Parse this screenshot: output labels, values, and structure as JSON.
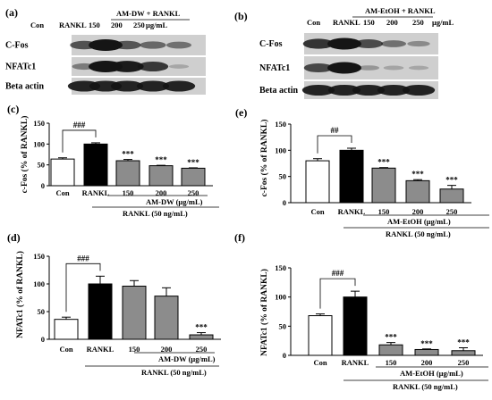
{
  "colors": {
    "con": "#ffffff",
    "rankl": "#000000",
    "treat": "#8c8c8c",
    "band_bg": "#cfcfcf",
    "band": "#151515"
  },
  "blots": [
    {
      "panel": "(a)",
      "group_label": "AM-DW + RANKL",
      "lanes": [
        "Con",
        "RANKL",
        "150",
        "200",
        "250"
      ],
      "unit": "μg/mL",
      "rows": [
        {
          "label": "C-Fos",
          "intensity": [
            0.62,
            1.0,
            0.6,
            0.48,
            0.42
          ]
        },
        {
          "label": "NFATc1",
          "intensity": [
            0.35,
            1.0,
            0.96,
            0.78,
            0.08
          ]
        },
        {
          "label": "Beta actin",
          "intensity": [
            0.9,
            0.9,
            0.9,
            0.9,
            0.9
          ]
        }
      ]
    },
    {
      "panel": "(b)",
      "group_label": "AM-EtOH + RANKL",
      "lanes": [
        "Con",
        "RANKL",
        "150",
        "200",
        "250"
      ],
      "unit": "μg/mL",
      "rows": [
        {
          "label": "C-Fos",
          "intensity": [
            0.8,
            1.0,
            0.66,
            0.42,
            0.26
          ]
        },
        {
          "label": "NFATc1",
          "intensity": [
            0.68,
            1.0,
            0.18,
            0.1,
            0.08
          ]
        },
        {
          "label": "Beta actin",
          "intensity": [
            0.9,
            0.9,
            0.9,
            0.9,
            0.9
          ]
        }
      ]
    }
  ],
  "chart_data": [
    {
      "panel": "(c)",
      "type": "bar",
      "ylabel": "c-Fos (% of RANKL)",
      "categories": [
        "Con",
        "RANKL",
        "150",
        "200",
        "250"
      ],
      "values": [
        64,
        100,
        60,
        48,
        42
      ],
      "errors": [
        3,
        3,
        3,
        1,
        1
      ],
      "significance": [
        "",
        "",
        "***",
        "***",
        "***"
      ],
      "bracket_label": "###",
      "ylim": [
        0,
        150
      ],
      "yticks": [
        0,
        50,
        100,
        150
      ],
      "group_label": "AM-DW (μg/mL)",
      "rankl_label": "RANKL (50 ng/mL)"
    },
    {
      "panel": "(e)",
      "type": "bar",
      "ylabel": "c-Fos (% of RANKL)",
      "categories": [
        "Con",
        "RANKL",
        "150",
        "200",
        "250"
      ],
      "values": [
        80,
        100,
        66,
        42,
        26
      ],
      "errors": [
        4,
        4,
        1,
        2,
        7
      ],
      "significance": [
        "",
        "",
        "***",
        "***",
        "***"
      ],
      "bracket_label": "##",
      "ylim": [
        0,
        150
      ],
      "yticks": [
        0,
        50,
        100,
        150
      ],
      "group_label": "AM-EtOH (μg/mL)",
      "rankl_label": "RANKL (50 ng/mL)"
    },
    {
      "panel": "(d)",
      "type": "bar",
      "ylabel": "NFATc1 (% of RANKL)",
      "categories": [
        "Con",
        "RANKL",
        "150",
        "200",
        "250"
      ],
      "values": [
        36,
        100,
        96,
        78,
        8
      ],
      "errors": [
        4,
        14,
        10,
        15,
        4
      ],
      "significance": [
        "",
        "",
        "",
        "",
        "***"
      ],
      "bracket_label": "###",
      "ylim": [
        0,
        150
      ],
      "yticks": [
        0,
        50,
        100,
        150
      ],
      "group_label": "AM-DW (μg/mL)",
      "rankl_label": "RANKL (50 ng/mL)"
    },
    {
      "panel": "(f)",
      "type": "bar",
      "ylabel": "NFATc1 (% of RANKL)",
      "categories": [
        "Con",
        "RANKL",
        "150",
        "200",
        "250"
      ],
      "values": [
        68,
        100,
        18,
        10,
        8
      ],
      "errors": [
        3,
        10,
        4,
        1,
        5
      ],
      "significance": [
        "",
        "",
        "***",
        "***",
        "***"
      ],
      "bracket_label": "###",
      "ylim": [
        0,
        150
      ],
      "yticks": [
        0,
        50,
        100,
        150
      ],
      "group_label": "AM-EtOH (μg/mL)",
      "rankl_label": "RANKL (50 ng/mL)"
    }
  ]
}
